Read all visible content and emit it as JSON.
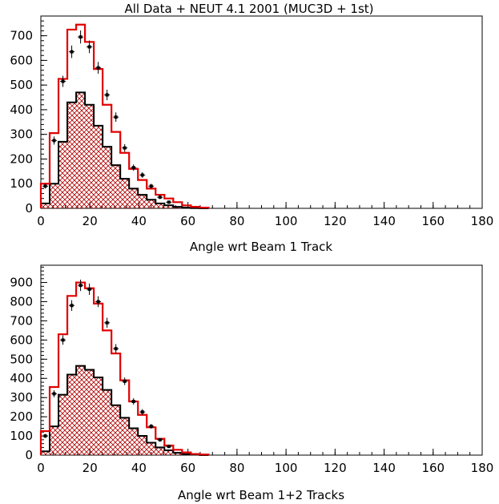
{
  "page_title": "All Data + NEUT 4.1 2001 (MUC3D + 1st)",
  "colors": {
    "mc_total": "#e00000",
    "mc_sub": "#000000",
    "hatch": "#b00000",
    "data": "#000000"
  },
  "chart_data": [
    {
      "type": "histogram",
      "title": "All Data + NEUT 4.1 2001 (MUC3D + 1st)",
      "xlabel": "Angle wrt Beam 1 Track",
      "ylabel": "",
      "xlim": [
        0,
        180
      ],
      "ylim": [
        0,
        780
      ],
      "xticks": [
        0,
        20,
        40,
        60,
        80,
        100,
        120,
        140,
        160,
        180
      ],
      "yticks": [
        0,
        100,
        200,
        300,
        400,
        500,
        600,
        700
      ],
      "bin_width": 3.6,
      "series": [
        {
          "style": "step",
          "values": [
            100,
            305,
            525,
            725,
            745,
            675,
            565,
            420,
            310,
            225,
            160,
            115,
            80,
            55,
            40,
            25,
            12,
            6,
            3
          ]
        },
        {
          "style": "step-hatched",
          "values": [
            20,
            100,
            270,
            430,
            470,
            420,
            335,
            250,
            175,
            120,
            80,
            55,
            35,
            20,
            12,
            6,
            3,
            1,
            0
          ]
        },
        {
          "style": "points",
          "x": [
            1.8,
            5.4,
            9,
            12.6,
            16.2,
            19.8,
            23.4,
            27,
            30.6,
            34.2,
            37.8,
            41.4,
            45,
            48.6,
            52.2
          ],
          "values": [
            90,
            275,
            515,
            635,
            695,
            655,
            570,
            460,
            370,
            245,
            165,
            135,
            90,
            45,
            25
          ]
        }
      ]
    },
    {
      "type": "histogram",
      "title": "",
      "xlabel": "Angle wrt Beam 1+2 Tracks",
      "ylabel": "",
      "xlim": [
        0,
        180
      ],
      "ylim": [
        0,
        990
      ],
      "xticks": [
        0,
        20,
        40,
        60,
        80,
        100,
        120,
        140,
        160,
        180
      ],
      "yticks": [
        0,
        100,
        200,
        300,
        400,
        500,
        600,
        700,
        800,
        900
      ],
      "bin_width": 3.6,
      "series": [
        {
          "style": "step",
          "values": [
            125,
            355,
            630,
            830,
            900,
            870,
            790,
            650,
            530,
            390,
            280,
            210,
            145,
            85,
            50,
            28,
            14,
            6,
            3
          ]
        },
        {
          "style": "step-hatched",
          "values": [
            20,
            150,
            315,
            420,
            465,
            445,
            405,
            340,
            260,
            195,
            140,
            100,
            65,
            40,
            25,
            12,
            5,
            2,
            0
          ]
        },
        {
          "style": "points",
          "x": [
            1.8,
            5.4,
            9,
            12.6,
            16.2,
            19.8,
            23.4,
            27,
            30.6,
            34.2,
            37.8,
            41.4,
            45,
            48.6,
            52.2
          ],
          "values": [
            100,
            320,
            600,
            780,
            885,
            865,
            800,
            690,
            555,
            385,
            280,
            225,
            150,
            80,
            45
          ]
        }
      ]
    }
  ]
}
